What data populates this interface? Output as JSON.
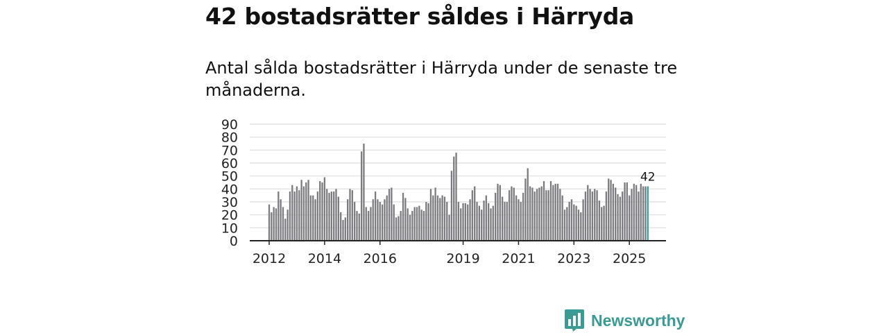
{
  "title": "42 bostadsrätter såldes i Härryda",
  "subtitle": "Antal sålda bostadsrätter i Härryda under de senaste tre månaderna.",
  "brand": {
    "name": "Newsworthy",
    "icon": "newsworthy-logo-icon"
  },
  "colors": {
    "bar": "#7b7b80",
    "highlight": "#2ba5a0",
    "grid": "#dedede",
    "axis": "#222222",
    "brand": "#3a9a94"
  },
  "chart_data": {
    "type": "bar",
    "title": "",
    "xlabel": "",
    "ylabel": "",
    "ylim": [
      0,
      90
    ],
    "yticks": [
      0,
      10,
      20,
      30,
      40,
      50,
      60,
      70,
      80,
      90
    ],
    "start": "2012-01",
    "frequency": "monthly",
    "xtick_labels": [
      {
        "label": "2012",
        "index": 0
      },
      {
        "label": "2014",
        "index": 24
      },
      {
        "label": "2016",
        "index": 48
      },
      {
        "label": "2019",
        "index": 84
      },
      {
        "label": "2021",
        "index": 108
      },
      {
        "label": "2023",
        "index": 132
      },
      {
        "label": "2025",
        "index": 156
      }
    ],
    "values": [
      28,
      22,
      26,
      25,
      38,
      32,
      26,
      17,
      24,
      38,
      43,
      38,
      42,
      39,
      47,
      42,
      45,
      47,
      35,
      35,
      32,
      38,
      46,
      45,
      49,
      40,
      37,
      38,
      38,
      40,
      34,
      22,
      16,
      18,
      32,
      40,
      39,
      30,
      23,
      21,
      69,
      75,
      26,
      23,
      26,
      32,
      38,
      32,
      30,
      28,
      32,
      35,
      40,
      41,
      28,
      18,
      19,
      23,
      37,
      33,
      25,
      20,
      23,
      26,
      26,
      27,
      24,
      23,
      30,
      29,
      40,
      35,
      41,
      35,
      33,
      35,
      34,
      30,
      20,
      54,
      65,
      68,
      30,
      25,
      29,
      29,
      28,
      32,
      39,
      42,
      30,
      27,
      24,
      31,
      35,
      29,
      25,
      27,
      37,
      44,
      43,
      34,
      30,
      30,
      39,
      42,
      41,
      35,
      32,
      30,
      37,
      48,
      56,
      42,
      41,
      38,
      40,
      41,
      42,
      46,
      39,
      39,
      46,
      43,
      44,
      44,
      40,
      35,
      24,
      26,
      30,
      32,
      28,
      27,
      24,
      22,
      32,
      38,
      43,
      40,
      38,
      40,
      39,
      31,
      26,
      27,
      38,
      48,
      47,
      44,
      41,
      36,
      34,
      38,
      45,
      45,
      35,
      40,
      44,
      43,
      38,
      44,
      42,
      42,
      42
    ],
    "highlight_index": 164,
    "highlight_label": "42"
  }
}
